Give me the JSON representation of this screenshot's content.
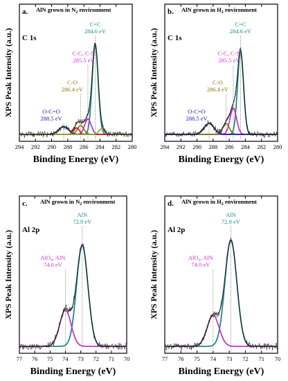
{
  "figure": {
    "ylabel": "XPS Peak Intensity (a.u.)",
    "xlabel": "Binding Energy (eV)"
  },
  "colors": {
    "raw": "#404040",
    "envelope": "#1a1a1a",
    "main_peak": "#1b8a8a",
    "cc_label": "#2aa0b8",
    "ccn": "#cc33cc",
    "co": "#808000",
    "oco": "#1a1aa6",
    "red": "#e02020",
    "green": "#7ab82a",
    "aln": "#1b8a8a"
  },
  "chart_data": [
    {
      "type": "line",
      "panel": "a.",
      "title": "AlN grown in N2 environment",
      "spectrum": "C 1s",
      "xlim": [
        294,
        280
      ],
      "xticks": [
        294,
        292,
        290,
        288,
        286,
        284,
        282,
        280
      ],
      "series": [
        {
          "label": "C=C",
          "energy": "284.6 eV",
          "center": 284.6,
          "height": 0.82,
          "width": 0.55,
          "color": "#1b8a8a"
        },
        {
          "label": "C-C, C-N",
          "energy": "285.5 eV",
          "center": 285.5,
          "height": 0.14,
          "width": 0.6,
          "color": "#cc33cc"
        },
        {
          "label": "C-O",
          "energy": "286.4 eV",
          "center": 286.4,
          "height": 0.08,
          "width": 0.6,
          "color": "#808000"
        },
        {
          "label": "O-C=O",
          "energy": "288.5 eV",
          "center": 288.5,
          "height": 0.07,
          "width": 0.9,
          "color": "#1a1aa6"
        },
        {
          "center": 286.9,
          "height": 0.06,
          "width": 0.5,
          "color": "#e02020"
        },
        {
          "center": 283.8,
          "height": 0.05,
          "width": 0.5,
          "color": "#7ab82a"
        }
      ]
    },
    {
      "type": "line",
      "panel": "b.",
      "title": "AlN grown in H2 environment",
      "spectrum": "C 1s",
      "xlim": [
        294,
        280
      ],
      "xticks": [
        294,
        292,
        290,
        288,
        286,
        284,
        282,
        280
      ],
      "series": [
        {
          "label": "C=C",
          "energy": "284.6 eV",
          "center": 284.6,
          "height": 0.76,
          "width": 0.55,
          "color": "#1b8a8a"
        },
        {
          "label": "C-C, C-N",
          "energy": "285.5 eV",
          "center": 285.5,
          "height": 0.24,
          "width": 0.6,
          "color": "#cc33cc"
        },
        {
          "label": "C-O",
          "energy": "286.4 eV",
          "center": 286.4,
          "height": 0.1,
          "width": 0.6,
          "color": "#808000"
        },
        {
          "label": "O-C=O",
          "energy": "288.5 eV",
          "center": 288.5,
          "height": 0.1,
          "width": 0.9,
          "color": "#1a1aa6"
        }
      ]
    },
    {
      "type": "line",
      "panel": "c.",
      "title": "AlN grown in N2 environment",
      "spectrum": "Al 2p",
      "xlim": [
        77,
        70
      ],
      "xticks": [
        77,
        76,
        75,
        74,
        73,
        72,
        71,
        70
      ],
      "series": [
        {
          "label": "AlN",
          "energy": "72.9 eV",
          "center": 72.9,
          "height": 0.78,
          "width": 0.55,
          "color": "#1b8a8a"
        },
        {
          "label": "AlOx, AlN",
          "energy": "74.0 eV",
          "center": 74.0,
          "height": 0.28,
          "width": 0.55,
          "color": "#cc33cc"
        }
      ]
    },
    {
      "type": "line",
      "panel": "d.",
      "title": "AlN grown in H2 environment",
      "spectrum": "Al 2p",
      "xlim": [
        77,
        70
      ],
      "xticks": [
        77,
        76,
        75,
        74,
        73,
        72,
        71,
        70
      ],
      "series": [
        {
          "label": "AlN",
          "energy": "72.9 eV",
          "center": 72.9,
          "height": 0.82,
          "width": 0.55,
          "color": "#1b8a8a"
        },
        {
          "label": "AlOx, AlN",
          "energy": "74.0 eV",
          "center": 74.0,
          "height": 0.24,
          "width": 0.55,
          "color": "#cc33cc"
        }
      ]
    }
  ]
}
